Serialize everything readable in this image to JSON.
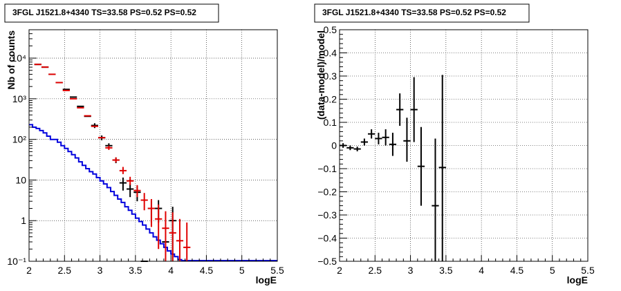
{
  "chart_data": [
    {
      "type": "line",
      "title": "3FGL J1521.8+4340 TS=33.58 PS=0.52 PS=0.52",
      "xlabel": "logE",
      "ylabel": "Nb of counts",
      "x_ticks": [
        "2",
        "2.5",
        "3",
        "3.5",
        "4",
        "4.5",
        "5",
        "5.5"
      ],
      "y_ticks": [
        "10⁻¹",
        "1",
        "10",
        "10²",
        "10³",
        "10⁴"
      ],
      "xlim": [
        2,
        5.5
      ],
      "ylim": [
        0.1,
        50000
      ],
      "y_scale": "log",
      "grid": true,
      "colors": {
        "data": "#000000",
        "model_red": "#e00000",
        "model_blue": "#0000dd"
      },
      "series": [
        {
          "role": "blue-step",
          "edges": [
            2.0,
            2.05,
            2.1,
            2.15,
            2.2,
            2.25,
            2.3,
            2.35,
            2.4,
            2.45,
            2.5,
            2.55,
            2.6,
            2.65,
            2.7,
            2.75,
            2.8,
            2.85,
            2.9,
            2.95,
            3.0,
            3.05,
            3.1,
            3.15,
            3.2,
            3.25,
            3.3,
            3.35,
            3.4,
            3.45,
            3.5,
            3.55,
            3.6,
            3.65,
            3.7,
            3.75,
            3.8,
            3.85,
            3.9,
            3.95,
            4.0,
            4.05,
            4.1,
            4.15,
            4.2,
            4.25,
            4.3,
            5.5
          ],
          "values": [
            230,
            200,
            185,
            165,
            145,
            120,
            100,
            100,
            85,
            70,
            60,
            50,
            42,
            35,
            28,
            23,
            19,
            16,
            14,
            11.5,
            9.5,
            8,
            6.5,
            5.2,
            4.2,
            3.4,
            2.8,
            2.2,
            1.8,
            1.45,
            1.15,
            0.95,
            0.78,
            0.62,
            0.5,
            0.4,
            0.33,
            0.27,
            0.22,
            0.18,
            0.15,
            0.13,
            0.11,
            0.1,
            0.1,
            0.1,
            0.1
          ]
        },
        {
          "role": "red-points",
          "x": [
            2.125,
            2.225,
            2.325,
            2.425,
            2.525,
            2.625,
            2.725,
            2.825,
            2.925,
            3.025,
            3.125,
            3.225,
            3.325,
            3.425,
            3.525,
            3.625,
            3.725,
            3.825,
            3.925,
            4.025,
            4.125,
            4.225
          ],
          "y": [
            7000,
            6000,
            4000,
            2500,
            1600,
            1000,
            600,
            380,
            210,
            110,
            62,
            31,
            17,
            9.5,
            5.5,
            3.2,
            2.0,
            1.1,
            0.65,
            0.5,
            0.32,
            0.22
          ],
          "ylo": [
            null,
            null,
            null,
            null,
            null,
            null,
            null,
            null,
            null,
            null,
            55,
            27,
            14,
            7.5,
            3.8,
            1.8,
            0.7,
            0.2,
            0.1,
            0.1,
            0.1,
            0.1
          ],
          "yhi": [
            null,
            null,
            null,
            null,
            null,
            null,
            null,
            null,
            null,
            null,
            70,
            36,
            21,
            12,
            7.5,
            4.8,
            3.4,
            2.5,
            1.7,
            1.6,
            1.1,
            0.9
          ]
        },
        {
          "role": "black-points",
          "x": [
            2.125,
            2.225,
            2.325,
            2.425,
            2.525,
            2.625,
            2.725,
            2.825,
            2.925,
            3.025,
            3.125,
            3.225,
            3.325,
            3.425,
            3.525,
            3.625,
            3.725,
            3.825,
            3.925,
            4.025
          ],
          "y": [
            7000,
            6000,
            4000,
            2500,
            1700,
            1100,
            650,
            370,
            220,
            110,
            70,
            31,
            8.5,
            6.0,
            5.0,
            0.1,
            2.0,
            2.0,
            0.3,
            1.0
          ],
          "ylo": [
            null,
            null,
            null,
            null,
            null,
            null,
            null,
            null,
            190,
            95,
            60,
            26,
            5.5,
            3.8,
            3.0,
            null,
            0.9,
            0.9,
            null,
            0.1
          ],
          "yhi": [
            null,
            null,
            null,
            null,
            null,
            null,
            null,
            null,
            250,
            125,
            80,
            36,
            11.5,
            8.2,
            7.0,
            null,
            3.2,
            3.2,
            null,
            2.2
          ]
        }
      ]
    },
    {
      "type": "scatter",
      "title": "3FGL J1521.8+4340 TS=33.58 PS=0.52 PS=0.52",
      "xlabel": "logE",
      "ylabel": "(data-model)/model",
      "x_ticks": [
        "2",
        "2.5",
        "3",
        "3.5",
        "4",
        "4.5",
        "5",
        "5.5"
      ],
      "y_ticks": [
        "−0.5",
        "−0.4",
        "−0.3",
        "−0.2",
        "−0.1",
        "0",
        "0.1",
        "0.2",
        "0.3",
        "0.4",
        "0.5"
      ],
      "xlim": [
        2,
        5.5
      ],
      "ylim": [
        -0.5,
        0.5
      ],
      "grid": true,
      "series": [
        {
          "x": [
            2.05,
            2.15,
            2.25,
            2.35,
            2.45,
            2.55,
            2.65,
            2.75,
            2.85,
            2.95,
            3.05,
            3.15,
            3.35,
            3.45
          ],
          "y": [
            0.0,
            -0.01,
            -0.015,
            0.015,
            0.05,
            0.03,
            0.035,
            0.005,
            0.155,
            0.02,
            0.155,
            -0.09,
            -0.26,
            -0.095
          ],
          "ylo": [
            -0.01,
            -0.02,
            -0.025,
            0.0,
            0.03,
            0.005,
            0.0,
            -0.045,
            0.085,
            -0.07,
            0.015,
            -0.26,
            -0.5,
            -0.5
          ],
          "yhi": [
            0.01,
            0.0,
            -0.005,
            0.03,
            0.07,
            0.055,
            0.07,
            0.055,
            0.225,
            0.12,
            0.295,
            0.08,
            0.03,
            0.305
          ]
        }
      ]
    }
  ]
}
